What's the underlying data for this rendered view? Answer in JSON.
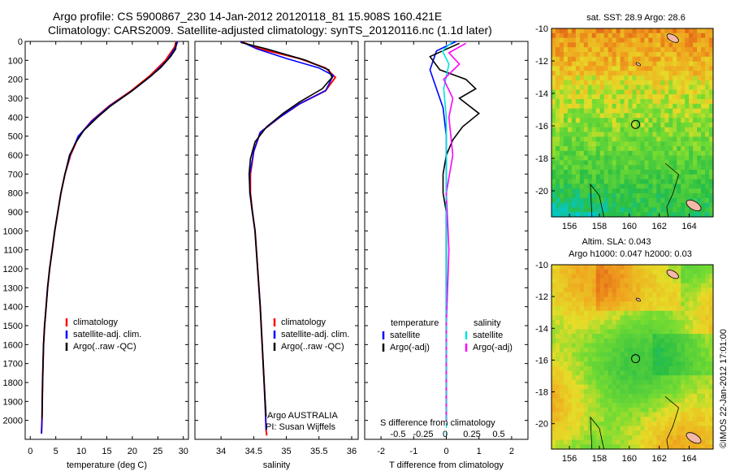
{
  "header": {
    "line1": "Argo profile: CS 5900867_230 14-Jan-2012 20120118_81 15.908S 160.421E",
    "line2": "Climatology: CARS2009. Satellite-adjusted climatology: synTS_20120116.nc (1.1d later)"
  },
  "colors": {
    "climatology": "#ff0000",
    "satellite": "#0000ff",
    "argo": "#000000",
    "sat_salinity": "#00e0e0",
    "argo_salinity": "#ff00ff"
  },
  "sst_map": {
    "title": "sat. SST: 28.9 Argo: 28.6",
    "xticks": [
      "156",
      "158",
      "160",
      "162",
      "164"
    ],
    "yticks": [
      "-10",
      "-12",
      "-14",
      "-16",
      "-18",
      "-20"
    ],
    "xlim": [
      154.8,
      165.6
    ],
    "ylim": [
      -21.6,
      -10
    ],
    "profile_lon": 160.42,
    "profile_lat": -15.91
  },
  "sla_map": {
    "title1": "Altim. SLA: 0.043",
    "title2": "Argo h1000: 0.047 h2000: 0.03",
    "xticks": [
      "156",
      "158",
      "160",
      "162",
      "164"
    ],
    "yticks": [
      "-10",
      "-12",
      "-14",
      "-16",
      "-18",
      "-20"
    ],
    "xlim": [
      154.8,
      165.6
    ],
    "ylim": [
      -21.6,
      -10
    ],
    "profile_lon": 160.42,
    "profile_lat": -15.91
  },
  "credit": "©IMOS 22-Jan-2012 17:01:00",
  "chart_data": [
    {
      "type": "line",
      "name": "temperature-profile",
      "xlabel": "temperature (deg C)",
      "xlim": [
        -1,
        31
      ],
      "ylim": [
        2100,
        0
      ],
      "xticks": [
        "0",
        "5",
        "10",
        "15",
        "20",
        "25",
        "30"
      ],
      "yticks": [
        "0",
        "100",
        "200",
        "300",
        "400",
        "500",
        "600",
        "700",
        "800",
        "900",
        "1000",
        "1100",
        "1200",
        "1300",
        "1400",
        "1500",
        "1600",
        "1700",
        "1800",
        "1900",
        "2000"
      ],
      "legend": [
        "climatology",
        "satellite-adj. clim.",
        "Argo(..raw -QC)"
      ],
      "series": [
        {
          "name": "climatology",
          "color": "#ff0000",
          "x": [
            28.6,
            28.3,
            26.5,
            23.5,
            19.8,
            15.5,
            12.0,
            9.5,
            7.9,
            6.8,
            6.0,
            5.4,
            4.8,
            4.3,
            3.8,
            3.4,
            3.1,
            2.8,
            2.6,
            2.4,
            2.3,
            2.2
          ],
          "y": [
            0,
            30,
            100,
            180,
            260,
            340,
            420,
            500,
            600,
            700,
            800,
            900,
            1000,
            1100,
            1200,
            1300,
            1400,
            1500,
            1600,
            1800,
            2000,
            2070
          ]
        },
        {
          "name": "satellite-adj. clim.",
          "color": "#0000ff",
          "x": [
            28.9,
            28.5,
            26.8,
            23.8,
            20.0,
            15.6,
            12.1,
            9.4,
            7.8,
            6.8,
            6.0,
            5.4,
            4.8,
            4.3,
            3.8,
            3.4,
            3.1,
            2.8,
            2.6,
            2.4,
            2.3,
            2.2
          ],
          "y": [
            0,
            30,
            100,
            180,
            260,
            340,
            420,
            500,
            600,
            700,
            800,
            900,
            1000,
            1100,
            1200,
            1300,
            1400,
            1500,
            1600,
            1800,
            2000,
            2070
          ]
        },
        {
          "name": "Argo(..raw -QC)",
          "color": "#000000",
          "x": [
            28.6,
            28.5,
            27.5,
            25.5,
            22.8,
            19.5,
            15.8,
            13.2,
            10.5,
            9.0,
            7.7,
            6.8,
            6.0,
            5.4,
            4.8,
            4.3,
            3.8,
            3.4,
            3.1,
            2.8,
            2.6,
            2.4,
            2.3
          ],
          "y": [
            5,
            40,
            80,
            140,
            200,
            270,
            340,
            400,
            470,
            530,
            600,
            700,
            800,
            900,
            1000,
            1100,
            1200,
            1300,
            1400,
            1500,
            1600,
            1800,
            1990
          ]
        }
      ]
    },
    {
      "type": "line",
      "name": "salinity-profile",
      "xlabel": "salinity",
      "xlim": [
        33.6,
        36.1
      ],
      "ylim": [
        2100,
        0
      ],
      "xticks": [
        "34",
        "34.5",
        "35",
        "35.5",
        "36"
      ],
      "legend": [
        "climatology",
        "satellite-adj. clim.",
        "Argo(..raw -QC)"
      ],
      "annotations": [
        "Argo AUSTRALIA",
        "PI: Susan Wijffels"
      ],
      "series": [
        {
          "name": "climatology",
          "color": "#ff0000",
          "x": [
            34.3,
            34.6,
            35.2,
            35.6,
            35.75,
            35.6,
            35.2,
            34.9,
            34.6,
            34.5,
            34.45,
            34.45,
            34.48,
            34.52,
            34.56,
            34.6,
            34.63,
            34.66,
            34.68,
            34.69,
            34.7
          ],
          "y": [
            0,
            40,
            90,
            140,
            190,
            260,
            330,
            400,
            480,
            580,
            700,
            800,
            900,
            1000,
            1200,
            1400,
            1600,
            1800,
            1950,
            2050,
            2080
          ]
        },
        {
          "name": "satellite-adj. clim.",
          "color": "#0000ff",
          "x": [
            34.3,
            34.55,
            35.0,
            35.5,
            35.72,
            35.6,
            35.2,
            34.9,
            34.6,
            34.5,
            34.44,
            34.44,
            34.48,
            34.52,
            34.56,
            34.6,
            34.63,
            34.66,
            34.68,
            34.69
          ],
          "y": [
            0,
            40,
            90,
            140,
            180,
            260,
            330,
            400,
            480,
            580,
            700,
            800,
            900,
            1000,
            1200,
            1400,
            1600,
            1800,
            1950,
            2050
          ]
        },
        {
          "name": "Argo(..raw -QC)",
          "color": "#000000",
          "x": [
            34.3,
            34.7,
            35.3,
            35.65,
            35.7,
            35.55,
            35.2,
            34.95,
            34.7,
            34.52,
            34.45,
            34.43,
            34.44,
            34.47,
            34.52,
            34.56,
            34.6,
            34.63,
            34.66,
            34.69
          ],
          "y": [
            5,
            40,
            100,
            150,
            190,
            250,
            320,
            380,
            450,
            530,
            620,
            700,
            780,
            880,
            1000,
            1200,
            1400,
            1600,
            1800,
            1980
          ]
        }
      ]
    },
    {
      "type": "line",
      "name": "difference-profile",
      "xlabel": "T difference from climatology",
      "xlabel2": "S difference from climatology",
      "xlim": [
        -2.5,
        2.5
      ],
      "ylim": [
        2100,
        0
      ],
      "xticks": [
        "-2",
        "-1",
        "0",
        "1",
        "2"
      ],
      "xticks_s": [
        "-0.5",
        "-0.25",
        "0",
        "0.25",
        "0.5"
      ],
      "legend_temperature_title": "temperature",
      "legend_salinity_title": "salinity",
      "legend": [
        "satellite",
        "Argo(-adj)",
        "satellite",
        "Argo(-adj)"
      ],
      "series": [
        {
          "name": "temperature satellite",
          "color": "#0000ff",
          "x": [
            0.3,
            -0.3,
            -0.5,
            -0.3,
            -0.1,
            0.0,
            0.0,
            0.0,
            0.0,
            0.0
          ],
          "y": [
            0,
            50,
            150,
            250,
            350,
            500,
            700,
            1000,
            1500,
            2000
          ]
        },
        {
          "name": "temperature Argo(-adj)",
          "color": "#000000",
          "x": [
            0.4,
            -0.5,
            -0.2,
            0.6,
            0.9,
            0.4,
            1.0,
            0.5,
            0.2,
            0.0,
            -0.1,
            -0.1,
            0.0,
            0.0,
            0.0,
            0.0
          ],
          "y": [
            10,
            80,
            150,
            200,
            250,
            300,
            380,
            450,
            520,
            600,
            700,
            800,
            900,
            1200,
            1600,
            2000
          ]
        },
        {
          "name": "salinity satellite",
          "color": "#00e0e0",
          "x": [
            0.05,
            -0.03,
            0.02,
            -0.02,
            0.0,
            0.0,
            0.0,
            0.0,
            0.0
          ],
          "y": [
            0,
            50,
            120,
            250,
            400,
            600,
            900,
            1400,
            2000
          ]
        },
        {
          "name": "salinity Argo(-adj)",
          "color": "#ff00ff",
          "x": [
            0.15,
            0.02,
            0.1,
            -0.02,
            0.05,
            0.02,
            0.05,
            0.0,
            0.02,
            0.0,
            0.0
          ],
          "y": [
            10,
            60,
            120,
            200,
            300,
            400,
            600,
            800,
            1100,
            1500,
            2000
          ]
        }
      ]
    }
  ]
}
